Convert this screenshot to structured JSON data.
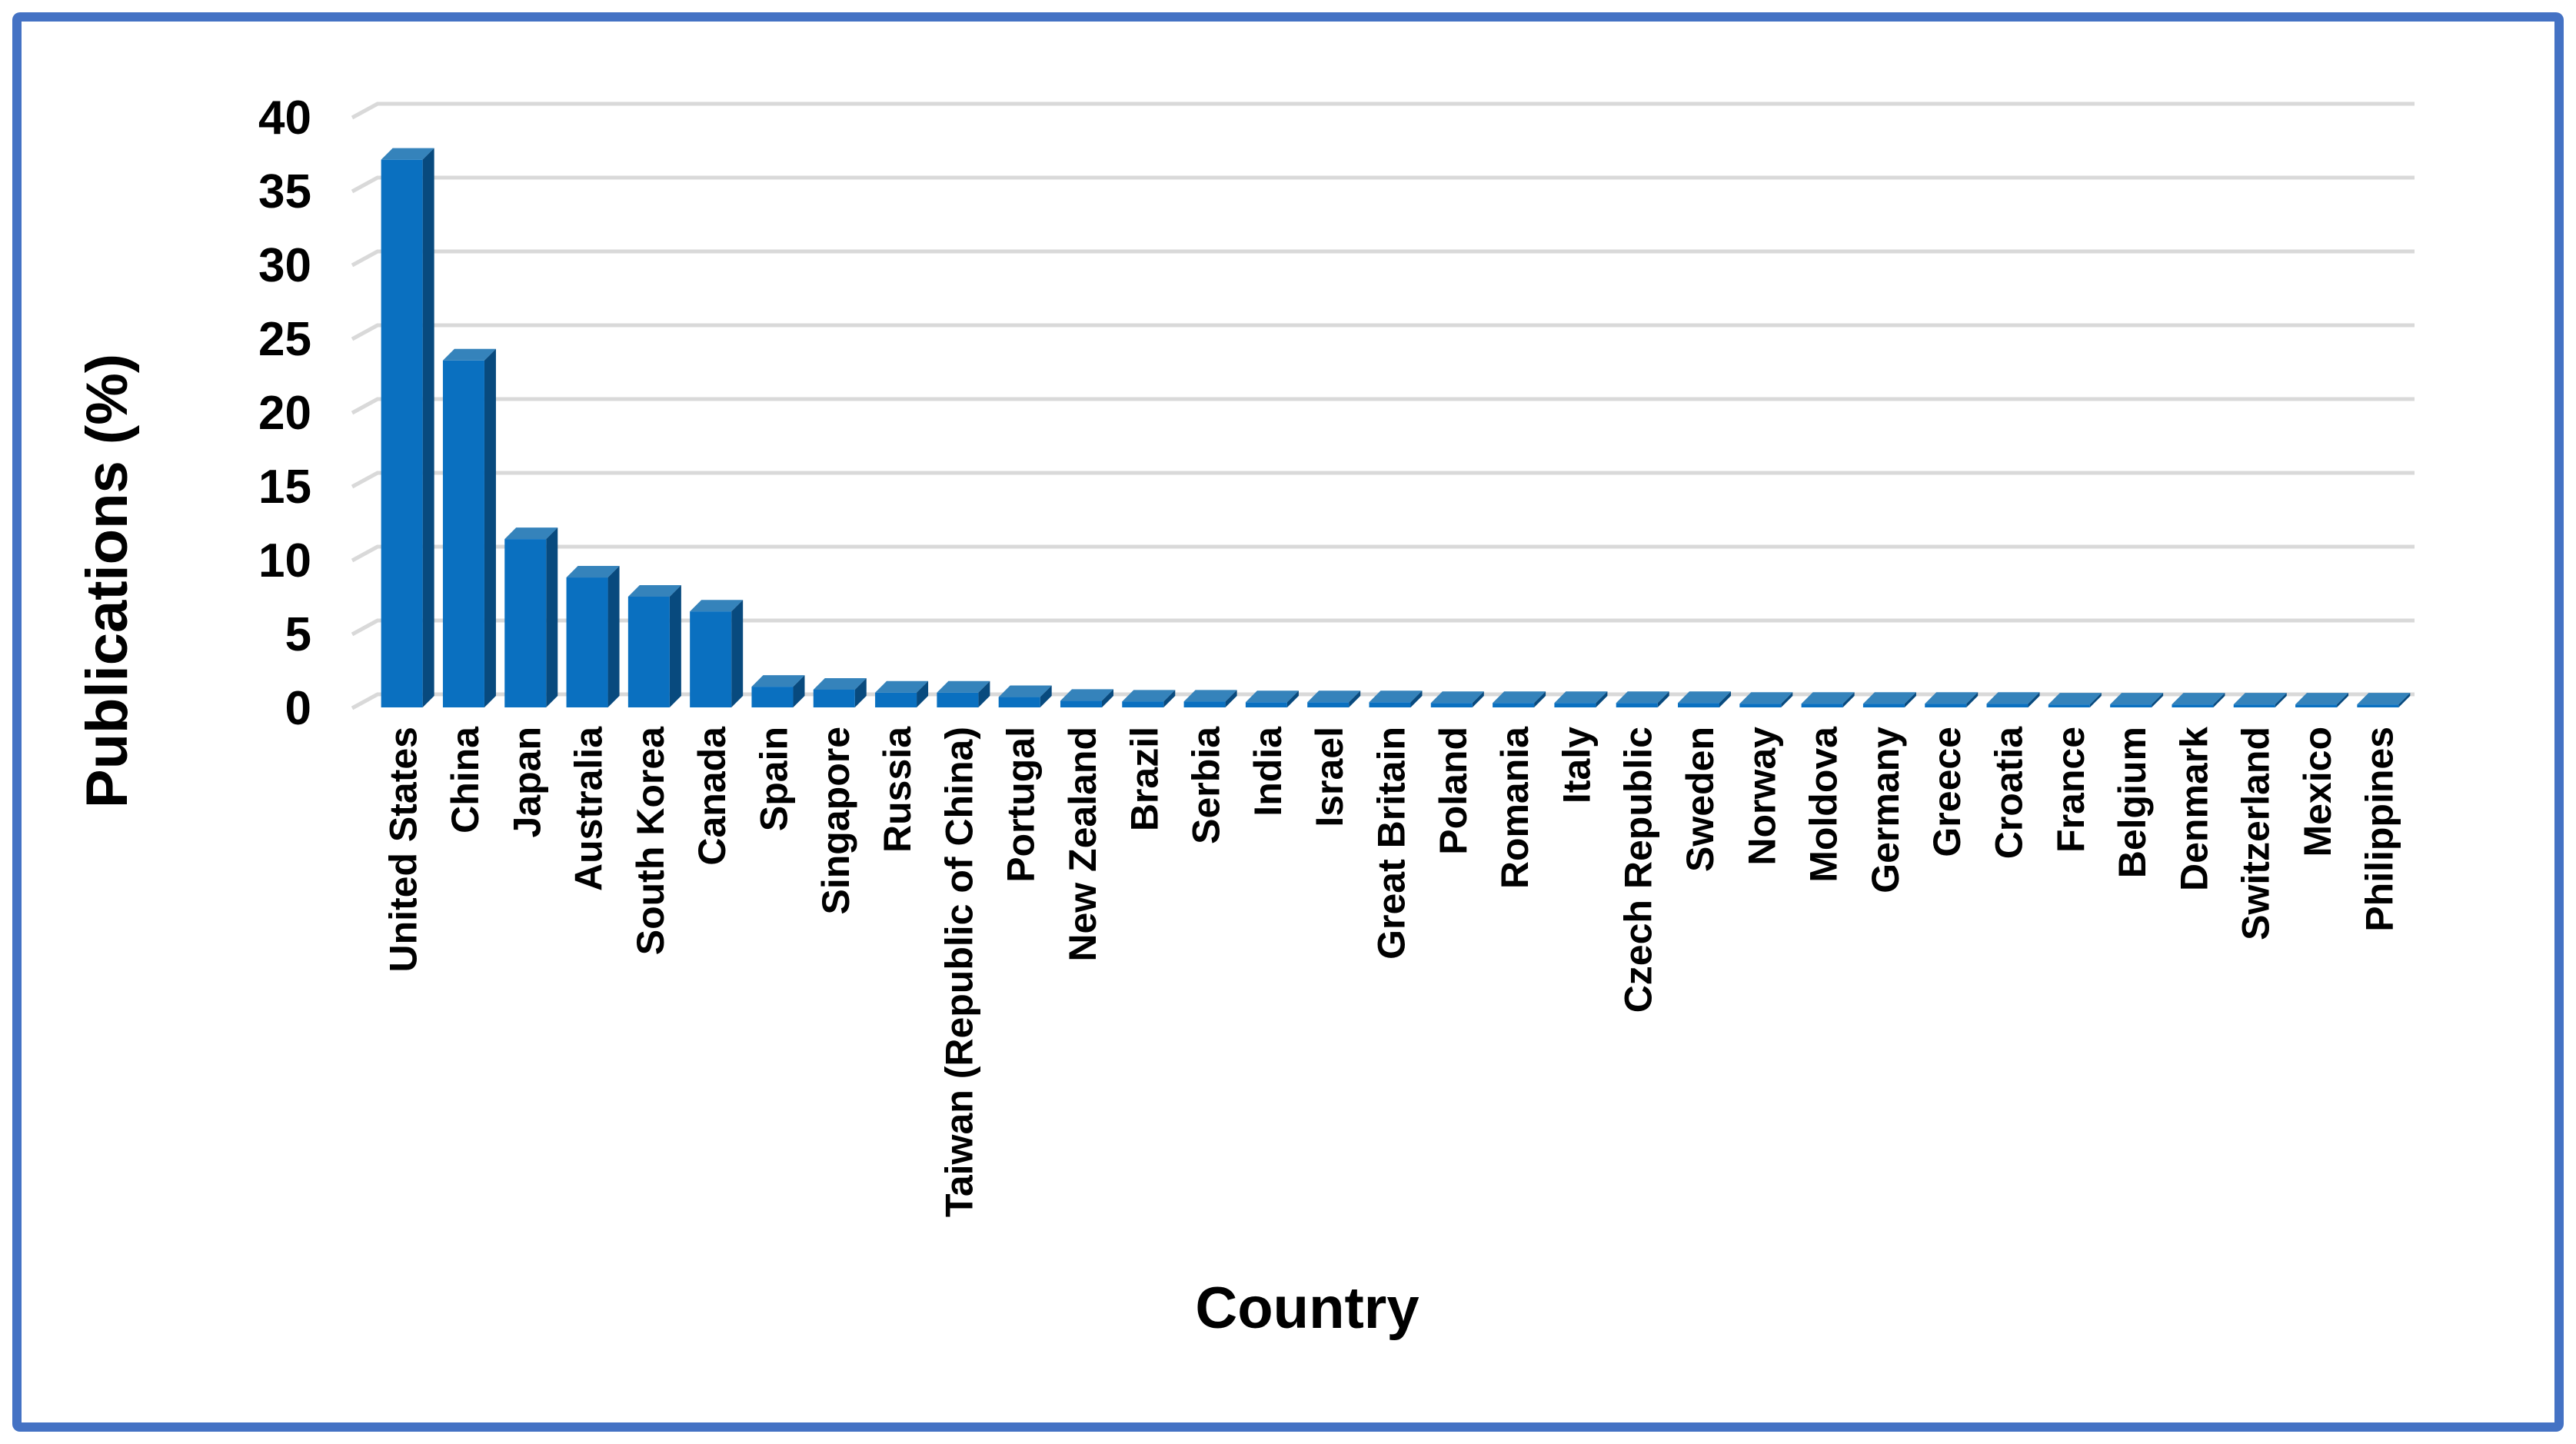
{
  "chart_data": {
    "type": "bar",
    "style": "3d-column",
    "title": "",
    "xlabel": "Country",
    "ylabel": "Publications (%)",
    "ylim": [
      0,
      40
    ],
    "yticks": [
      0,
      5,
      10,
      15,
      20,
      25,
      30,
      35,
      40
    ],
    "grid": true,
    "legend_position": "none",
    "bar_color": "#0a70c0",
    "bar_side_color": "#084a7e",
    "bar_top_color": "#3583bb",
    "gridline_color": "#d9d9d9",
    "frame_border_color": "#4472c4",
    "text_color": "#000000",
    "categories": [
      "United States",
      "China",
      "Japan",
      "Australia",
      "South Korea",
      "Canada",
      "Spain",
      "Singapore",
      "Russia",
      "Taiwan (Republic of China)",
      "Portugal",
      "New Zealand",
      "Brazil",
      "Serbia",
      "India",
      "Israel",
      "Great Britain",
      "Poland",
      "Romania",
      "Italy",
      "Czech Republic",
      "Sweden",
      "Norway",
      "Moldova",
      "Germany",
      "Greece",
      "Croatia",
      "France",
      "Belgium",
      "Denmark",
      "Switzerland",
      "Mexico",
      "Philippines"
    ],
    "values": [
      37.1,
      23.5,
      11.4,
      8.8,
      7.5,
      6.5,
      1.4,
      1.2,
      1.0,
      1.0,
      0.7,
      0.45,
      0.4,
      0.4,
      0.35,
      0.35,
      0.35,
      0.3,
      0.3,
      0.3,
      0.3,
      0.3,
      0.25,
      0.25,
      0.25,
      0.25,
      0.25,
      0.2,
      0.2,
      0.2,
      0.2,
      0.2,
      0.2
    ]
  }
}
